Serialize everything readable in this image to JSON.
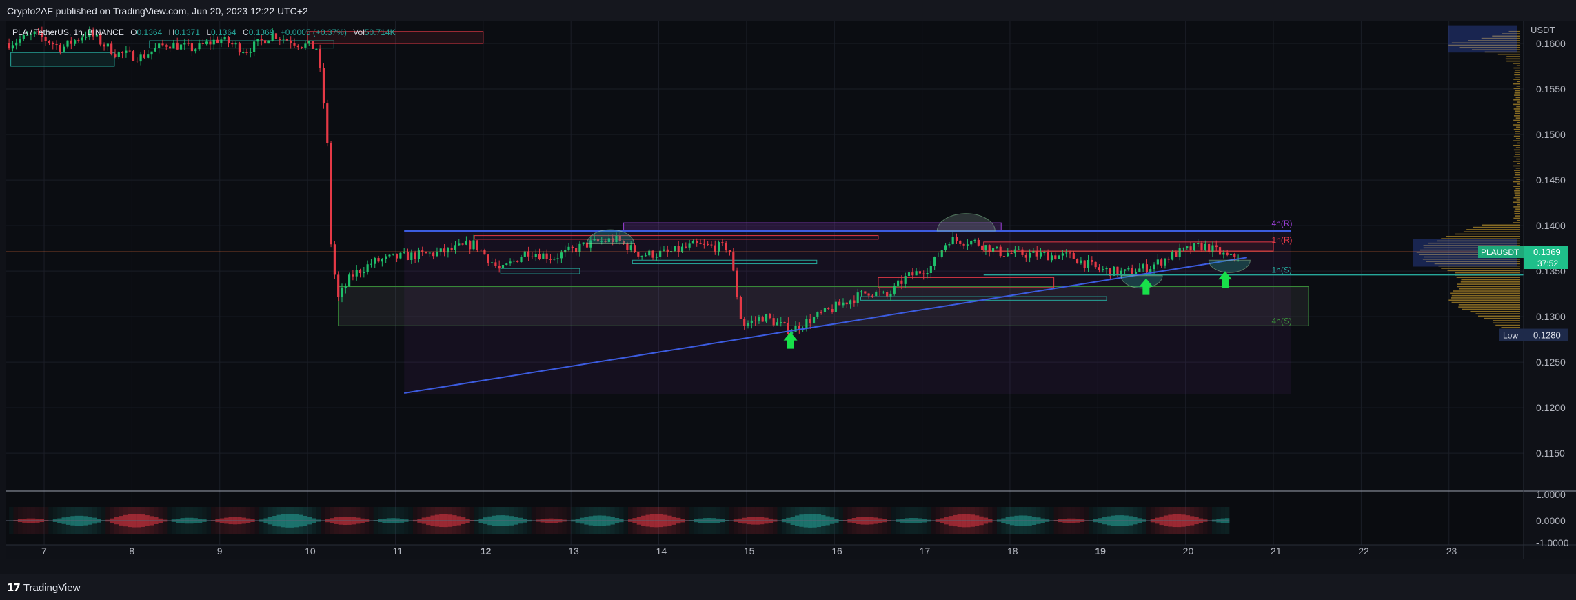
{
  "header": {
    "publisher_line": "Crypto2AF published on TradingView.com, Jun 20, 2023 12:22 UTC+2"
  },
  "legend": {
    "symbol": "PLA / TetherUS, 1h, BINANCE",
    "open_label": "O",
    "open": "0.1364",
    "high_label": "H",
    "high": "0.1371",
    "low_label": "L",
    "low": "0.1364",
    "close_label": "C",
    "close": "0.1369",
    "change": "+0.0005 (+0.37%)",
    "vol_label": "Vol",
    "vol": "50.714K"
  },
  "footer": {
    "brand": "TradingView"
  },
  "colors": {
    "background": "#0b0d12",
    "grid": "#1b1e27",
    "up": "#26a69a",
    "up_candle": "#1fbf6b",
    "down": "#e53946",
    "trendline": "#3c5ce0",
    "resistance": "#9b3fd6",
    "orange_line": "#f0743a",
    "green_marker": "#18e04a",
    "volume_profile": "#b08a2a"
  },
  "chart_data": {
    "type": "candlestick",
    "axis_currency": "USDT",
    "yticks": [
      0.16,
      0.155,
      0.15,
      0.145,
      0.14,
      0.135,
      0.13,
      0.125,
      0.12,
      0.115
    ],
    "ytick_labels": [
      "0.1600",
      "0.1550",
      "0.1500",
      "0.1450",
      "0.1400",
      "0.1350",
      "0.1300",
      "0.1250",
      "0.1200",
      "0.1150"
    ],
    "ylim": [
      0.111,
      0.1625
    ],
    "xticks": [
      "7",
      "8",
      "9",
      "10",
      "11",
      "12",
      "13",
      "14",
      "15",
      "16",
      "17",
      "18",
      "19",
      "20",
      "21",
      "22",
      "23"
    ],
    "bold_xticks": [
      "12",
      "19"
    ],
    "xlim": [
      6.56,
      23.85
    ],
    "close_path": [
      [
        6.6,
        0.16
      ],
      [
        6.9,
        0.161
      ],
      [
        7.2,
        0.1595
      ],
      [
        7.5,
        0.1612
      ],
      [
        7.8,
        0.159
      ],
      [
        8.1,
        0.1585
      ],
      [
        8.4,
        0.16
      ],
      [
        8.7,
        0.1594
      ],
      [
        9.0,
        0.1605
      ],
      [
        9.3,
        0.1592
      ],
      [
        9.6,
        0.161
      ],
      [
        9.9,
        0.16
      ],
      [
        10.1,
        0.1595
      ],
      [
        10.17,
        0.155
      ],
      [
        10.24,
        0.147
      ],
      [
        10.27,
        0.137
      ],
      [
        10.35,
        0.132
      ],
      [
        10.5,
        0.1345
      ],
      [
        10.75,
        0.136
      ],
      [
        11.0,
        0.1365
      ],
      [
        11.5,
        0.137
      ],
      [
        11.9,
        0.138
      ],
      [
        12.2,
        0.135
      ],
      [
        12.5,
        0.1372
      ],
      [
        12.8,
        0.1365
      ],
      [
        13.2,
        0.138
      ],
      [
        13.5,
        0.1385
      ],
      [
        13.8,
        0.1368
      ],
      [
        14.1,
        0.137
      ],
      [
        14.4,
        0.1378
      ],
      [
        14.8,
        0.1376
      ],
      [
        14.95,
        0.129
      ],
      [
        15.2,
        0.13
      ],
      [
        15.5,
        0.1285
      ],
      [
        15.8,
        0.13
      ],
      [
        16.1,
        0.1315
      ],
      [
        16.4,
        0.1328
      ],
      [
        16.6,
        0.1322
      ],
      [
        16.8,
        0.1342
      ],
      [
        17.1,
        0.1355
      ],
      [
        17.3,
        0.1385
      ],
      [
        17.6,
        0.1382
      ],
      [
        17.9,
        0.137
      ],
      [
        18.3,
        0.1368
      ],
      [
        18.7,
        0.1366
      ],
      [
        19.0,
        0.1352
      ],
      [
        19.3,
        0.1348
      ],
      [
        19.6,
        0.1355
      ],
      [
        19.9,
        0.137
      ],
      [
        20.2,
        0.1378
      ],
      [
        20.35,
        0.1372
      ],
      [
        20.5,
        0.1364
      ],
      [
        20.6,
        0.1369
      ]
    ],
    "last_price": {
      "symbol": "PLAUSDT",
      "value": "0.1369",
      "countdown": "37:52"
    },
    "low_marker": {
      "label": "Low",
      "value": "0.1280"
    },
    "levels": [
      {
        "label": "4h(R)",
        "price": 0.1397,
        "color": "#9b3fd6"
      },
      {
        "label": "1h(R)",
        "price": 0.1379,
        "color": "#e53946"
      },
      {
        "label": "1h(S)",
        "price": 0.1346,
        "color": "#26a69a"
      },
      {
        "label": "4h(S)",
        "price": 0.129,
        "color": "#3a8f3a"
      }
    ],
    "trendline": {
      "from": [
        11.1,
        0.1216
      ],
      "to": [
        20.7,
        0.1365
      ]
    },
    "resistance_line": {
      "from": [
        11.1,
        0.1394
      ],
      "to": [
        21.2,
        0.1394
      ]
    },
    "orange_line_price": 0.1371,
    "buy_markers": [
      [
        15.5,
        0.1283
      ],
      [
        19.55,
        0.1342
      ],
      [
        20.45,
        0.135
      ]
    ],
    "oscillator": {
      "yticks": [
        "1.0000",
        "0.0000",
        "-1.0000"
      ],
      "ylim": [
        -1.0,
        1.0
      ]
    }
  }
}
